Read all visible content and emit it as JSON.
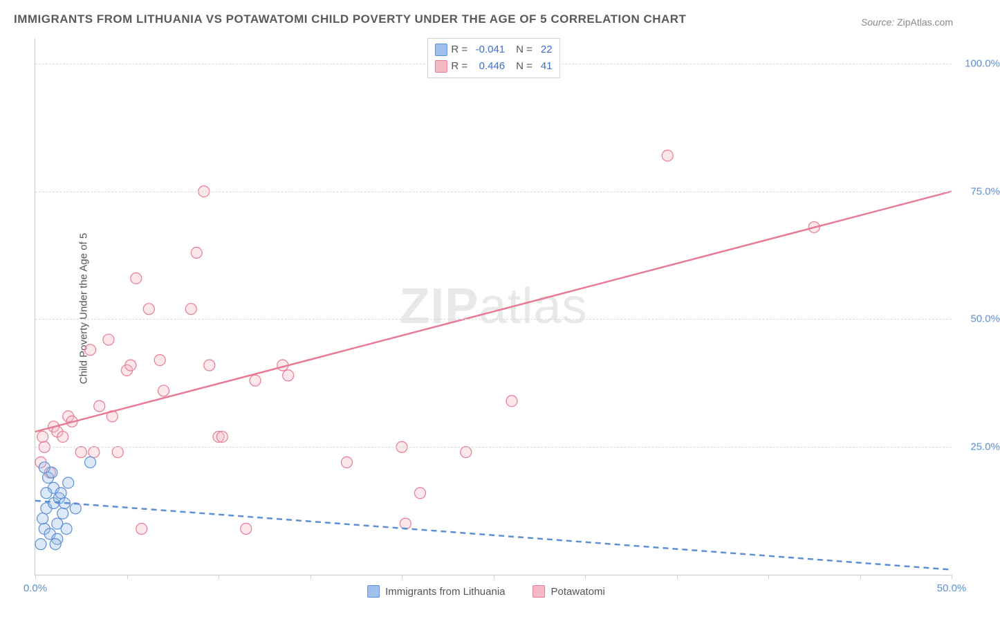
{
  "title": "IMMIGRANTS FROM LITHUANIA VS POTAWATOMI CHILD POVERTY UNDER THE AGE OF 5 CORRELATION CHART",
  "source_label": "Source:",
  "source_value": "ZipAtlas.com",
  "ylabel": "Child Poverty Under the Age of 5",
  "watermark_a": "ZIP",
  "watermark_b": "atlas",
  "colors": {
    "series1_fill": "#9fc1ec",
    "series1_stroke": "#5b8fd6",
    "series2_fill": "#f6b9c5",
    "series2_stroke": "#e77a94",
    "axis_text": "#5b8fd6",
    "grid": "#d8d8d8",
    "title": "#5a5a5a",
    "background": "#ffffff"
  },
  "axes": {
    "xlim": [
      0,
      50
    ],
    "ylim": [
      0,
      105
    ],
    "yticks": [
      25,
      50,
      75,
      100
    ],
    "ytick_labels": [
      "25.0%",
      "50.0%",
      "75.0%",
      "100.0%"
    ],
    "xticks": [
      0,
      5,
      10,
      15,
      20,
      25,
      30,
      35,
      40,
      45,
      50
    ],
    "xtick_labels": {
      "0": "0.0%",
      "50": "50.0%"
    }
  },
  "legend_top": [
    {
      "r_label": "R =",
      "r": "-0.041",
      "n_label": "N =",
      "n": "22",
      "color_key": "series1"
    },
    {
      "r_label": "R =",
      "r": "0.446",
      "n_label": "N =",
      "n": "41",
      "color_key": "series2"
    }
  ],
  "legend_bottom": [
    {
      "label": "Immigrants from Lithuania",
      "color_key": "series1"
    },
    {
      "label": "Potawatomi",
      "color_key": "series2"
    }
  ],
  "scatter": {
    "marker_radius": 8,
    "series1": {
      "name": "Immigrants from Lithuania",
      "points": [
        [
          0.3,
          6
        ],
        [
          0.5,
          9
        ],
        [
          0.4,
          11
        ],
        [
          0.6,
          13
        ],
        [
          0.8,
          8
        ],
        [
          1.0,
          14
        ],
        [
          1.2,
          10
        ],
        [
          1.0,
          17
        ],
        [
          1.3,
          15
        ],
        [
          0.7,
          19
        ],
        [
          1.5,
          12
        ],
        [
          1.4,
          16
        ],
        [
          1.8,
          18
        ],
        [
          1.2,
          7
        ],
        [
          0.9,
          20
        ],
        [
          1.6,
          14
        ],
        [
          2.2,
          13
        ],
        [
          0.5,
          21
        ],
        [
          3.0,
          22
        ],
        [
          1.1,
          6
        ],
        [
          1.7,
          9
        ],
        [
          0.6,
          16
        ]
      ],
      "trend": {
        "x1": 0,
        "y1": 14.5,
        "x2": 50,
        "y2": 1,
        "dash": true
      }
    },
    "series2": {
      "name": "Potawatomi",
      "points": [
        [
          0.3,
          22
        ],
        [
          0.5,
          25
        ],
        [
          0.4,
          27
        ],
        [
          0.8,
          20
        ],
        [
          1.0,
          29
        ],
        [
          1.2,
          28
        ],
        [
          1.5,
          27
        ],
        [
          1.8,
          31
        ],
        [
          2.0,
          30
        ],
        [
          2.5,
          24
        ],
        [
          3.0,
          44
        ],
        [
          3.5,
          33
        ],
        [
          4.0,
          46
        ],
        [
          4.5,
          24
        ],
        [
          5.0,
          40
        ],
        [
          5.2,
          41
        ],
        [
          5.5,
          58
        ],
        [
          5.8,
          9
        ],
        [
          6.2,
          52
        ],
        [
          6.8,
          42
        ],
        [
          7.0,
          36
        ],
        [
          8.5,
          52
        ],
        [
          8.8,
          63
        ],
        [
          9.2,
          75
        ],
        [
          9.5,
          41
        ],
        [
          10.0,
          27
        ],
        [
          10.2,
          27
        ],
        [
          11.5,
          9
        ],
        [
          12.0,
          38
        ],
        [
          13.5,
          41
        ],
        [
          13.8,
          39
        ],
        [
          17.0,
          22
        ],
        [
          20.0,
          25
        ],
        [
          20.2,
          10
        ],
        [
          21.0,
          16
        ],
        [
          23.5,
          24
        ],
        [
          26.0,
          34
        ],
        [
          34.5,
          82
        ],
        [
          42.5,
          68
        ],
        [
          3.2,
          24
        ],
        [
          4.2,
          31
        ]
      ],
      "trend": {
        "x1": 0,
        "y1": 28,
        "x2": 50,
        "y2": 75,
        "dash": false
      }
    }
  }
}
